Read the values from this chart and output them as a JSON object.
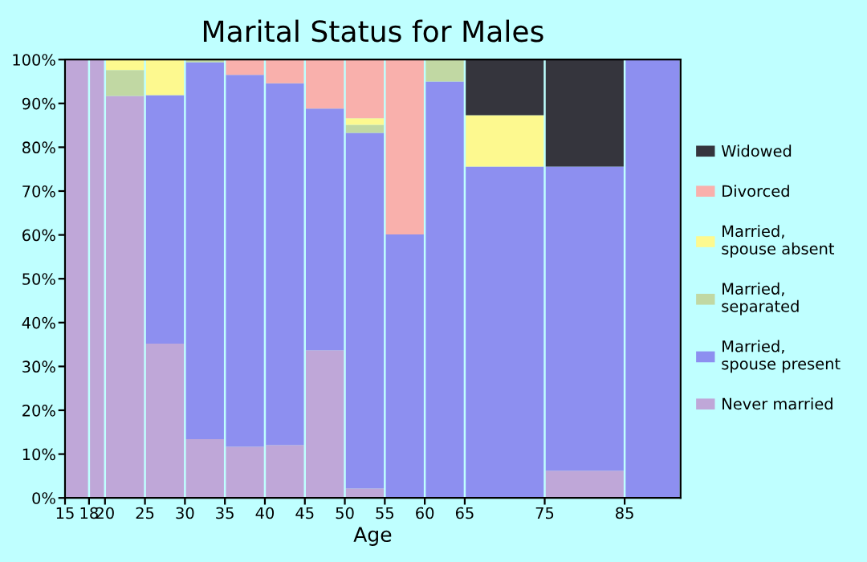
{
  "chart_data": {
    "type": "bar",
    "stacked": true,
    "title": "Marital Status for Males",
    "xlabel": "Age",
    "x": [
      16.5,
      19,
      22.5,
      27.5,
      32.5,
      37.5,
      42.5,
      47.5,
      52.5,
      57.5,
      62.5,
      70,
      80,
      88.5
    ],
    "series": [
      {
        "name": "Never married",
        "color": "#bfa7d8",
        "values": [
          100,
          100,
          91.7,
          35.2,
          13.4,
          11.7,
          12.1,
          33.7,
          2.2,
          0,
          0,
          0,
          6.2,
          0
        ]
      },
      {
        "name": "Married, spouse present",
        "color": "#8d8ff0",
        "values": [
          0,
          0,
          0,
          56.7,
          86.0,
          84.8,
          82.5,
          55.1,
          81.1,
          60.1,
          95.0,
          75.6,
          69.4,
          100
        ]
      },
      {
        "name": "Married, separated",
        "color": "#c1d8a3",
        "values": [
          0,
          0,
          5.9,
          0,
          0.6,
          0,
          0,
          0,
          1.8,
          0,
          5.0,
          0,
          0,
          0
        ]
      },
      {
        "name": "Married, spouse absent",
        "color": "#fdf98f",
        "values": [
          0,
          0,
          2.4,
          8.1,
          0,
          0,
          0,
          0,
          1.5,
          0,
          0,
          11.7,
          0,
          0
        ]
      },
      {
        "name": "Divorced",
        "color": "#f9b0ac",
        "values": [
          0,
          0,
          0,
          0,
          0,
          3.5,
          5.4,
          11.2,
          13.4,
          39.9,
          0,
          0,
          0,
          0
        ]
      },
      {
        "name": "Widowed",
        "color": "#35353d",
        "values": [
          0,
          0,
          0,
          0,
          0,
          0,
          0,
          0,
          0,
          0,
          0,
          12.7,
          24.4,
          0
        ]
      }
    ],
    "xlim": [
      15,
      92
    ],
    "xticks": [
      15,
      18,
      20,
      25,
      30,
      35,
      40,
      45,
      50,
      55,
      60,
      65,
      75,
      85
    ],
    "ylim": [
      0,
      100
    ],
    "yticks": [
      {
        "value": 0,
        "label": "0%"
      },
      {
        "value": 10,
        "label": "10%"
      },
      {
        "value": 20,
        "label": "20%"
      },
      {
        "value": 30,
        "label": "30%"
      },
      {
        "value": 40,
        "label": "40%"
      },
      {
        "value": 50,
        "label": "50%"
      },
      {
        "value": 60,
        "label": "60%"
      },
      {
        "value": 70,
        "label": "70%"
      },
      {
        "value": 80,
        "label": "80%"
      },
      {
        "value": 90,
        "label": "90%"
      },
      {
        "value": 100,
        "label": "100%"
      }
    ],
    "legend": "right",
    "grid": false
  }
}
